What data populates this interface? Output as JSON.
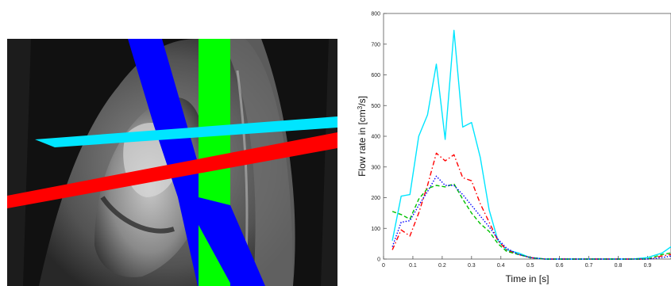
{
  "mri_image": {
    "description_colors": {
      "plane_blue": "#0000ff",
      "plane_green": "#00ff00",
      "plane_cyan": "#00e5ff",
      "plane_red": "#ff0000"
    }
  },
  "chart_data": {
    "type": "line",
    "xlabel": "Time in [s]",
    "ylabel_main": "Flow rate in [cm",
    "ylabel_sup": "3",
    "ylabel_end": "/s]",
    "xlim": [
      0,
      0.98
    ],
    "ylim": [
      0,
      800
    ],
    "x_ticks": [
      0,
      0.1,
      0.2,
      0.3,
      0.4,
      0.5,
      0.6,
      0.7,
      0.8,
      0.9
    ],
    "x_tick_labels": [
      "0",
      "0.1",
      "0.2",
      "0.3",
      "0.4",
      "0.5",
      "0.6",
      "0.7",
      "0.8",
      "0.9"
    ],
    "y_ticks": [
      0,
      100,
      200,
      300,
      400,
      500,
      600,
      700,
      800
    ],
    "y_tick_labels": [
      "0",
      "100",
      "200",
      "300",
      "400",
      "500",
      "600",
      "700",
      "800"
    ],
    "grid": false,
    "series": [
      {
        "color": "#00e5ff",
        "style": "solid",
        "x": [
          0.03,
          0.06,
          0.09,
          0.12,
          0.15,
          0.18,
          0.21,
          0.24,
          0.27,
          0.3,
          0.33,
          0.36,
          0.39,
          0.42,
          0.46,
          0.5,
          0.55,
          0.6,
          0.65,
          0.7,
          0.75,
          0.8,
          0.85,
          0.9,
          0.95,
          0.98
        ],
        "y": [
          60,
          205,
          210,
          400,
          470,
          635,
          390,
          745,
          430,
          445,
          330,
          160,
          60,
          30,
          20,
          5,
          0,
          0,
          0,
          0,
          0,
          0,
          0,
          5,
          20,
          40
        ]
      },
      {
        "color": "#ff0000",
        "style": "dashdot",
        "x": [
          0.03,
          0.06,
          0.09,
          0.12,
          0.15,
          0.18,
          0.21,
          0.24,
          0.27,
          0.3,
          0.33,
          0.36,
          0.39,
          0.42,
          0.46,
          0.5,
          0.55,
          0.6,
          0.65,
          0.7,
          0.75,
          0.8,
          0.85,
          0.9,
          0.95,
          0.98
        ],
        "y": [
          30,
          95,
          75,
          150,
          240,
          345,
          320,
          340,
          265,
          255,
          180,
          120,
          60,
          30,
          15,
          5,
          0,
          0,
          0,
          0,
          0,
          0,
          0,
          0,
          10,
          15
        ]
      },
      {
        "color": "#00c000",
        "style": "dashed",
        "x": [
          0.03,
          0.06,
          0.09,
          0.12,
          0.15,
          0.18,
          0.21,
          0.24,
          0.27,
          0.3,
          0.33,
          0.36,
          0.39,
          0.42,
          0.46,
          0.5,
          0.55,
          0.6,
          0.65,
          0.7,
          0.75,
          0.8,
          0.85,
          0.9,
          0.95,
          0.98
        ],
        "y": [
          155,
          145,
          130,
          195,
          230,
          240,
          235,
          245,
          195,
          150,
          115,
          90,
          50,
          25,
          15,
          5,
          0,
          0,
          0,
          0,
          0,
          0,
          0,
          0,
          15,
          20
        ]
      },
      {
        "color": "#0000ff",
        "style": "dotted",
        "x": [
          0.03,
          0.06,
          0.09,
          0.12,
          0.15,
          0.18,
          0.21,
          0.24,
          0.27,
          0.3,
          0.33,
          0.36,
          0.39,
          0.42,
          0.46,
          0.5,
          0.55,
          0.6,
          0.65,
          0.7,
          0.75,
          0.8,
          0.85,
          0.9,
          0.95,
          0.98
        ],
        "y": [
          40,
          120,
          125,
          175,
          220,
          270,
          240,
          240,
          210,
          175,
          140,
          105,
          65,
          35,
          15,
          5,
          0,
          0,
          0,
          0,
          0,
          0,
          0,
          0,
          5,
          10
        ]
      }
    ]
  }
}
